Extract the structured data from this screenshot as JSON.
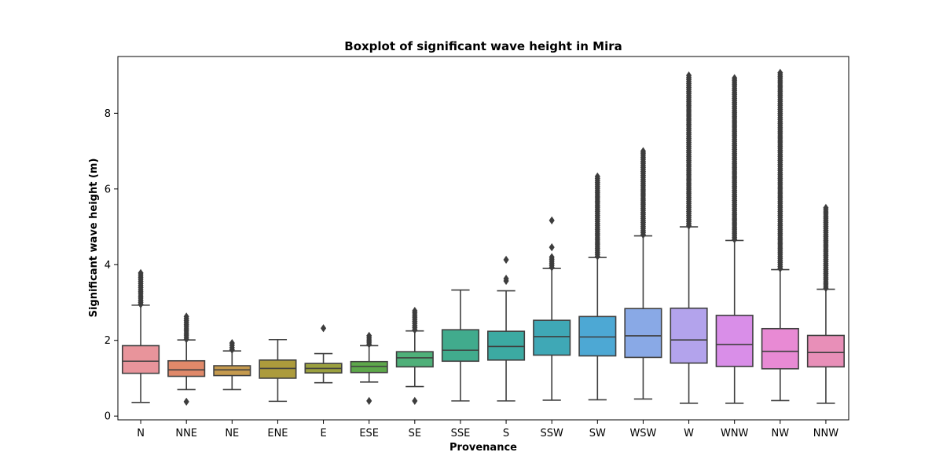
{
  "chart_data": {
    "type": "boxplot",
    "title": "Boxplot of significant wave height in Mira",
    "xlabel": "Provenance",
    "ylabel": "Significant wave height (m)",
    "ylim": [
      -0.1,
      9.5
    ],
    "yticks": [
      0,
      2,
      4,
      6,
      8
    ],
    "grid": false,
    "legend": "none",
    "categories": [
      "N",
      "NNE",
      "NE",
      "ENE",
      "E",
      "ESE",
      "SE",
      "SSE",
      "S",
      "SSW",
      "SW",
      "WSW",
      "W",
      "WNW",
      "NW",
      "NNW"
    ],
    "colors": [
      "#e8949b",
      "#e0896a",
      "#c59a4e",
      "#ac9b3c",
      "#9ba03f",
      "#5da84a",
      "#4fb079",
      "#41ab8d",
      "#3caaa2",
      "#3fa8b6",
      "#4da8d4",
      "#89a9e6",
      "#b3a3ec",
      "#d98ee8",
      "#e88ad4",
      "#e88fb8"
    ],
    "boxes": [
      {
        "whislo": 0.36,
        "q1": 1.13,
        "med": 1.45,
        "q3": 1.86,
        "whishi": 2.93,
        "fliers_range": [
          2.95,
          3.78
        ]
      },
      {
        "whislo": 0.7,
        "q1": 1.05,
        "med": 1.22,
        "q3": 1.46,
        "whishi": 2.01,
        "fliers_low": [
          0.38
        ],
        "fliers_range": [
          2.03,
          2.63
        ]
      },
      {
        "whislo": 0.7,
        "q1": 1.07,
        "med": 1.22,
        "q3": 1.33,
        "whishi": 1.72,
        "fliers_range": [
          1.75,
          1.93
        ]
      },
      {
        "whislo": 0.39,
        "q1": 1.0,
        "med": 1.26,
        "q3": 1.48,
        "whishi": 2.02
      },
      {
        "whislo": 0.88,
        "q1": 1.14,
        "med": 1.26,
        "q3": 1.39,
        "whishi": 1.65,
        "fliers_high": [
          2.32
        ]
      },
      {
        "whislo": 0.9,
        "q1": 1.15,
        "med": 1.31,
        "q3": 1.44,
        "whishi": 1.86,
        "fliers_low": [
          0.4
        ],
        "fliers_range": [
          1.9,
          2.12
        ]
      },
      {
        "whislo": 0.78,
        "q1": 1.3,
        "med": 1.54,
        "q3": 1.7,
        "whishi": 2.25,
        "fliers_low": [
          0.4
        ],
        "fliers_range": [
          2.28,
          2.78
        ]
      },
      {
        "whislo": 0.4,
        "q1": 1.45,
        "med": 1.74,
        "q3": 2.28,
        "whishi": 3.33
      },
      {
        "whislo": 0.4,
        "q1": 1.48,
        "med": 1.84,
        "q3": 2.24,
        "whishi": 3.31,
        "fliers_high": [
          3.57,
          3.63,
          4.13
        ]
      },
      {
        "whislo": 0.42,
        "q1": 1.61,
        "med": 2.1,
        "q3": 2.53,
        "whishi": 3.9,
        "fliers_range": [
          3.93,
          4.2
        ],
        "fliers_high": [
          4.46,
          5.17
        ]
      },
      {
        "whislo": 0.43,
        "q1": 1.59,
        "med": 2.09,
        "q3": 2.63,
        "whishi": 4.19,
        "fliers_range": [
          4.22,
          6.33
        ]
      },
      {
        "whislo": 0.45,
        "q1": 1.55,
        "med": 2.12,
        "q3": 2.84,
        "whishi": 4.76,
        "fliers_range": [
          4.79,
          7.0
        ]
      },
      {
        "whislo": 0.34,
        "q1": 1.4,
        "med": 2.01,
        "q3": 2.85,
        "whishi": 5.0,
        "fliers_range": [
          5.03,
          9.0
        ]
      },
      {
        "whislo": 0.34,
        "q1": 1.31,
        "med": 1.89,
        "q3": 2.66,
        "whishi": 4.64,
        "fliers_range": [
          4.67,
          8.93
        ]
      },
      {
        "whislo": 0.41,
        "q1": 1.25,
        "med": 1.71,
        "q3": 2.31,
        "whishi": 3.87,
        "fliers_range": [
          3.9,
          9.07
        ]
      },
      {
        "whislo": 0.34,
        "q1": 1.3,
        "med": 1.68,
        "q3": 2.13,
        "whishi": 3.35,
        "fliers_range": [
          3.38,
          5.5
        ]
      }
    ]
  }
}
